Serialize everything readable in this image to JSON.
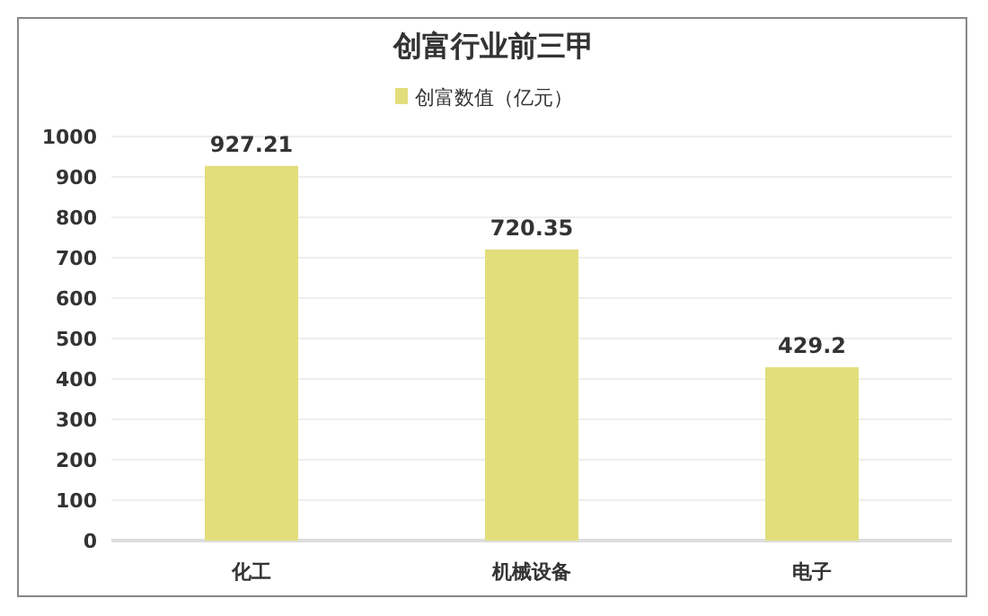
{
  "chart_data": {
    "type": "bar",
    "title": "创富行业前三甲",
    "categories": [
      "化工",
      "机械设备",
      "电子"
    ],
    "series": [
      {
        "name": "创富数值（亿元）",
        "color": "#e2de7c",
        "values": [
          927.21,
          720.35,
          429.2
        ]
      }
    ],
    "ylim": [
      0,
      1000
    ],
    "yticks": [
      0,
      100,
      200,
      300,
      400,
      500,
      600,
      700,
      800,
      900,
      1000
    ],
    "grid": "y",
    "legend": "top",
    "data_labels": true
  }
}
